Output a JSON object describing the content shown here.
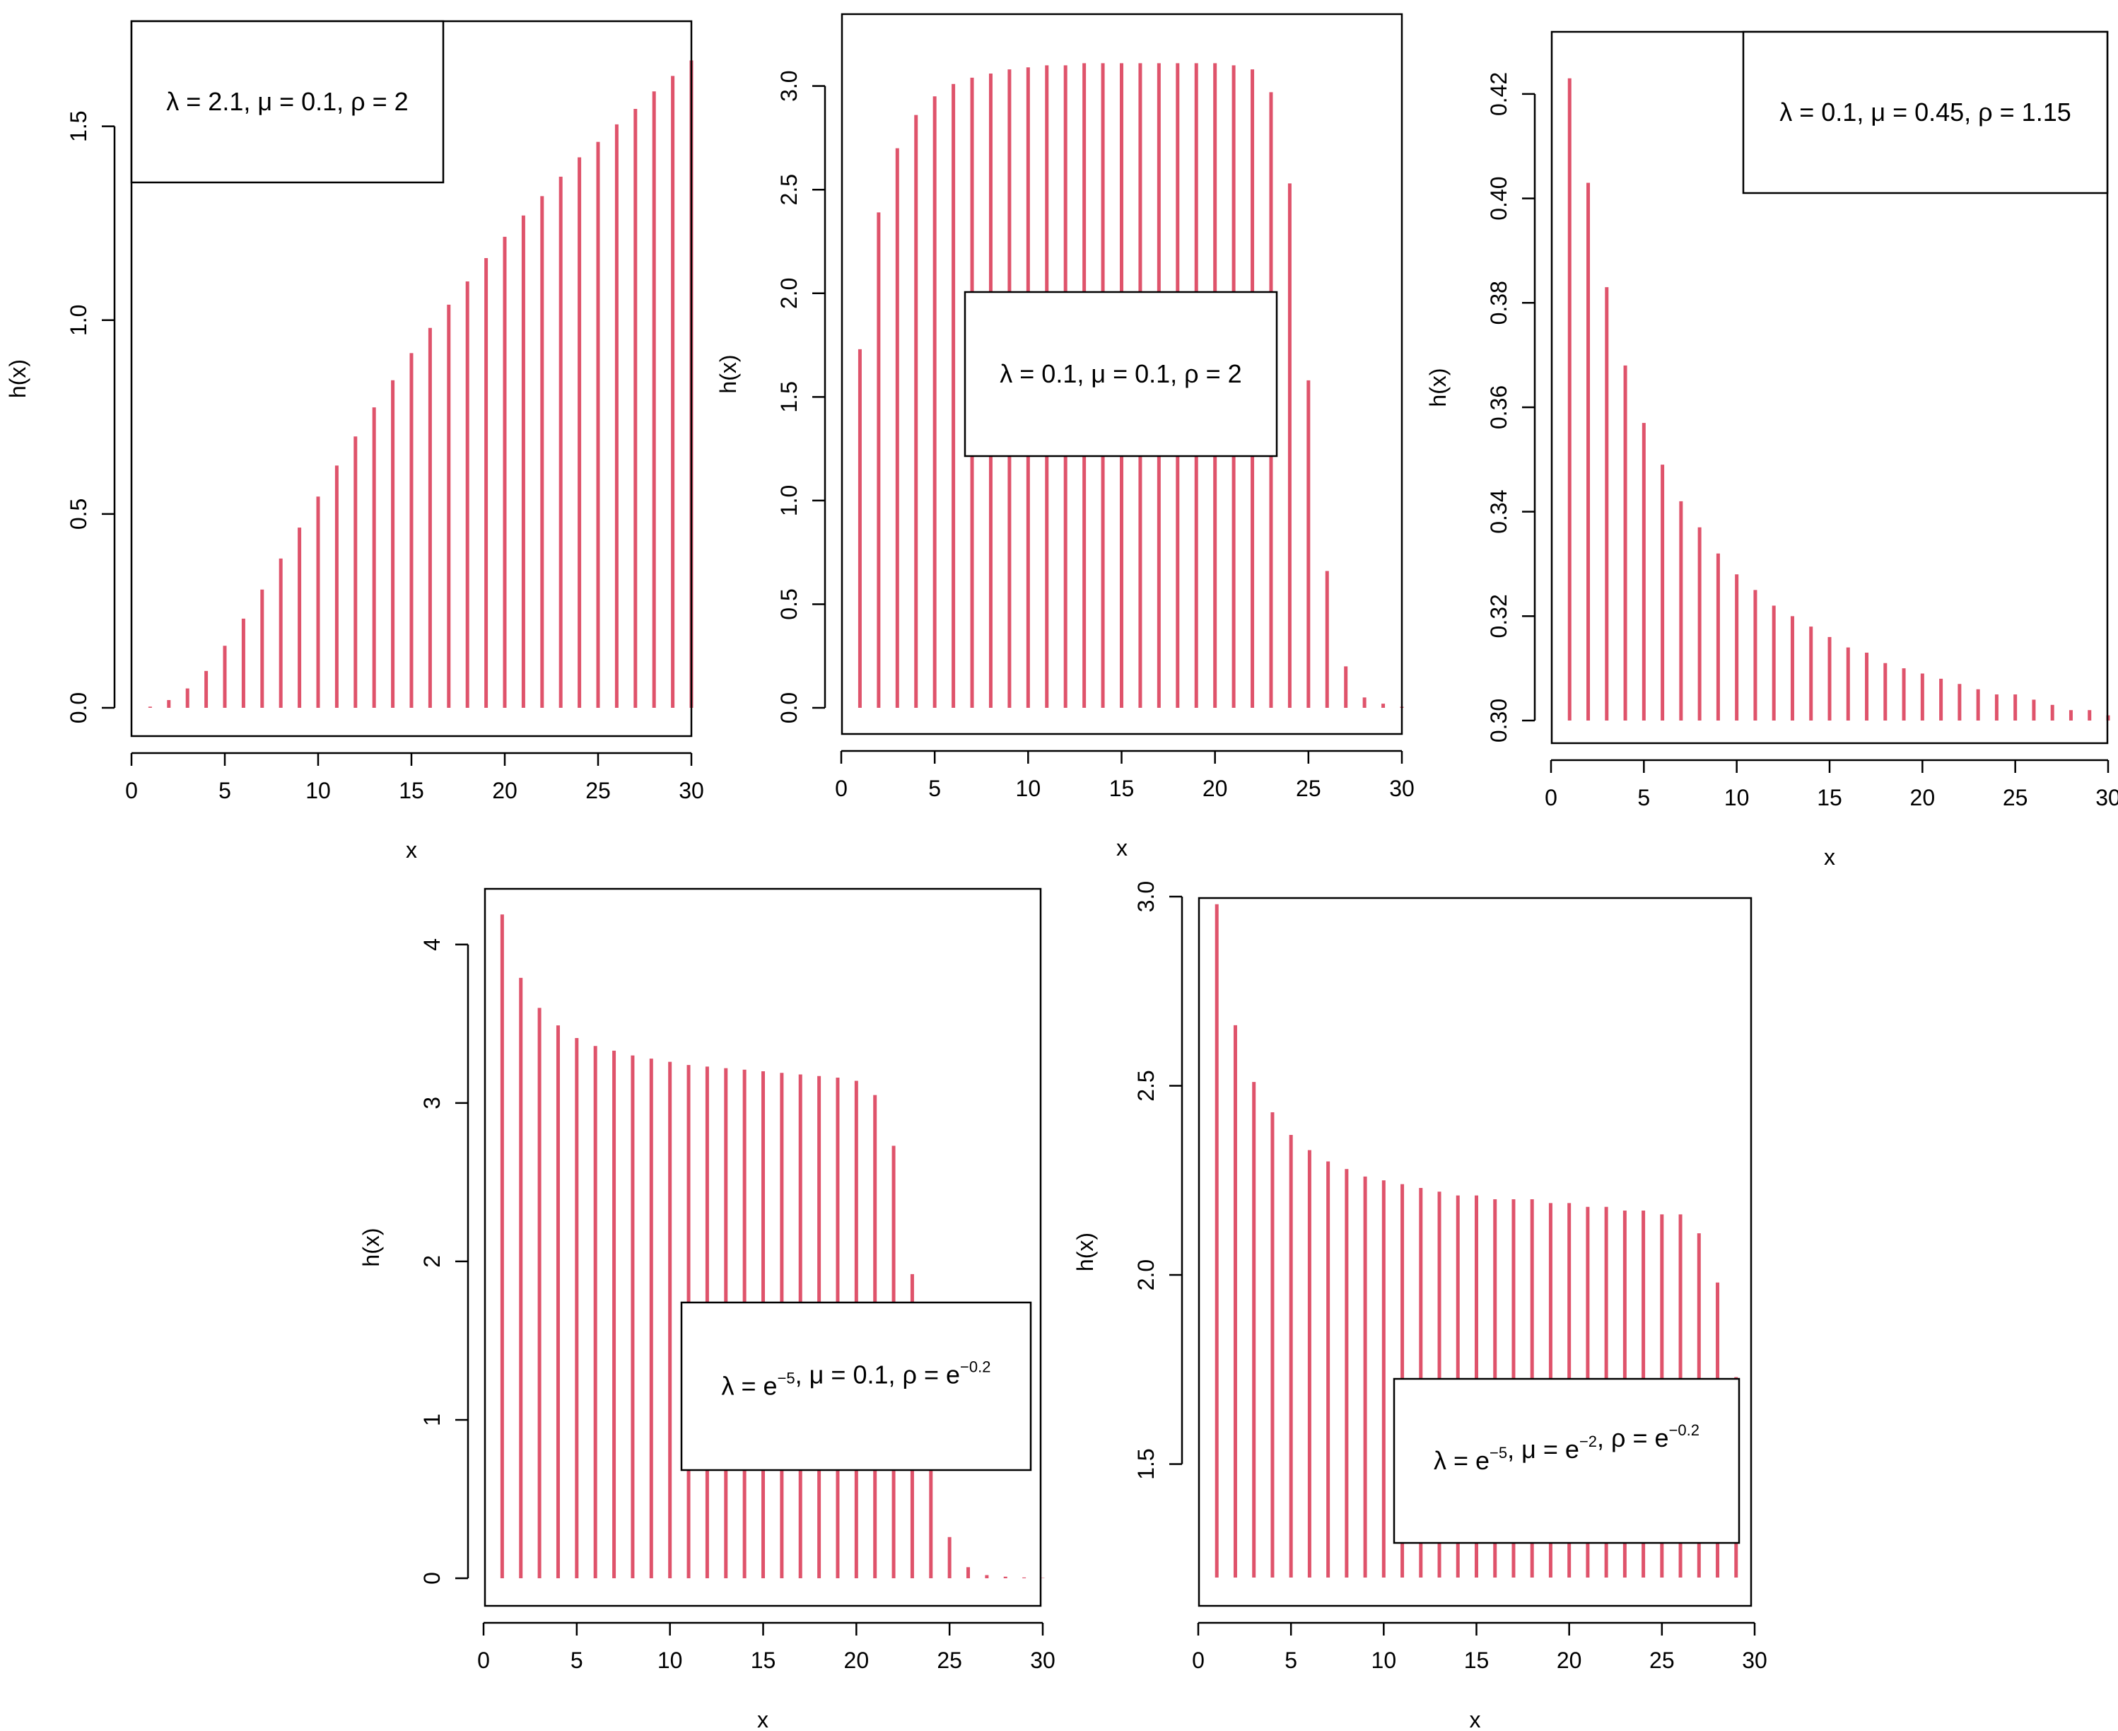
{
  "colors": {
    "spike": "#DF536B",
    "axis": "#000000",
    "background": "#FFFFFF"
  },
  "chart_data": [
    {
      "type": "bar",
      "style": "vertical-spikes",
      "xlabel": "x",
      "ylabel": "h(x)",
      "xlim": [
        0,
        30
      ],
      "ylim": [
        0,
        1.7
      ],
      "xticks": [
        "0",
        "5",
        "10",
        "15",
        "20",
        "25",
        "30"
      ],
      "yticks": [
        "0.0",
        "0.5",
        "1.0",
        "1.5"
      ],
      "grid": false,
      "legend_position": "top-left",
      "legend": {
        "parts": [
          {
            "t": "λ = 2.1, μ = 0.1, ρ = 2"
          }
        ]
      },
      "x": [
        1,
        2,
        3,
        4,
        5,
        6,
        7,
        8,
        9,
        10,
        11,
        12,
        13,
        14,
        15,
        16,
        17,
        18,
        19,
        20,
        21,
        22,
        23,
        24,
        25,
        26,
        27,
        28,
        29,
        30
      ],
      "values": [
        0.003,
        0.02,
        0.05,
        0.095,
        0.16,
        0.23,
        0.305,
        0.385,
        0.465,
        0.545,
        0.625,
        0.7,
        0.775,
        0.845,
        0.915,
        0.98,
        1.04,
        1.1,
        1.16,
        1.215,
        1.27,
        1.32,
        1.37,
        1.42,
        1.46,
        1.505,
        1.545,
        1.59,
        1.63,
        1.67
      ]
    },
    {
      "type": "bar",
      "style": "vertical-spikes",
      "xlabel": "x",
      "ylabel": "h(x)",
      "xlim": [
        0,
        30
      ],
      "ylim": [
        0,
        3.2
      ],
      "xticks": [
        "0",
        "5",
        "10",
        "15",
        "20",
        "25",
        "30"
      ],
      "yticks": [
        "0.0",
        "0.5",
        "1.0",
        "1.5",
        "2.0",
        "2.5",
        "3.0"
      ],
      "grid": false,
      "legend_position": "center-right",
      "legend": {
        "parts": [
          {
            "t": "λ = 0.1, μ = 0.1, ρ = 2"
          }
        ]
      },
      "x": [
        1,
        2,
        3,
        4,
        5,
        6,
        7,
        8,
        9,
        10,
        11,
        12,
        13,
        14,
        15,
        16,
        17,
        18,
        19,
        20,
        21,
        22,
        23,
        24,
        25,
        26,
        27,
        28,
        29,
        30
      ],
      "values": [
        1.73,
        2.39,
        2.7,
        2.86,
        2.95,
        3.01,
        3.04,
        3.06,
        3.08,
        3.09,
        3.1,
        3.1,
        3.11,
        3.11,
        3.11,
        3.11,
        3.11,
        3.11,
        3.11,
        3.11,
        3.1,
        3.08,
        2.97,
        2.53,
        1.58,
        0.66,
        0.2,
        0.05,
        0.02,
        0.005
      ]
    },
    {
      "type": "bar",
      "style": "vertical-spikes",
      "xlabel": "x",
      "ylabel": "h(x)",
      "xlim": [
        0,
        30
      ],
      "ylim": [
        0.3,
        0.425
      ],
      "xticks": [
        "0",
        "5",
        "10",
        "15",
        "20",
        "25",
        "30"
      ],
      "yticks": [
        "0.30",
        "0.32",
        "0.34",
        "0.36",
        "0.38",
        "0.40",
        "0.42"
      ],
      "grid": false,
      "legend_position": "top-right",
      "legend": {
        "parts": [
          {
            "t": "λ = 0.1, μ = 0.45, ρ = 1.15"
          }
        ]
      },
      "x": [
        1,
        2,
        3,
        4,
        5,
        6,
        7,
        8,
        9,
        10,
        11,
        12,
        13,
        14,
        15,
        16,
        17,
        18,
        19,
        20,
        21,
        22,
        23,
        24,
        25,
        26,
        27,
        28,
        29,
        30
      ],
      "values": [
        0.423,
        0.403,
        0.383,
        0.368,
        0.357,
        0.349,
        0.342,
        0.337,
        0.332,
        0.328,
        0.325,
        0.322,
        0.32,
        0.318,
        0.316,
        0.314,
        0.313,
        0.311,
        0.31,
        0.309,
        0.308,
        0.307,
        0.306,
        0.305,
        0.305,
        0.304,
        0.303,
        0.302,
        0.302,
        0.301
      ]
    },
    {
      "type": "bar",
      "style": "vertical-spikes",
      "xlabel": "x",
      "ylabel": "h(x)",
      "xlim": [
        0,
        30
      ],
      "ylim": [
        0,
        4.2
      ],
      "xticks": [
        "0",
        "5",
        "10",
        "15",
        "20",
        "25",
        "30"
      ],
      "yticks": [
        "0",
        "1",
        "2",
        "3",
        "4"
      ],
      "grid": false,
      "legend_position": "bottom-right",
      "legend": {
        "parts": [
          {
            "t": "λ = e"
          },
          {
            "t": "−5",
            "sup": true
          },
          {
            "t": ", μ = 0.1, ρ = e"
          },
          {
            "t": "−0.2",
            "sup": true
          }
        ]
      },
      "x": [
        1,
        2,
        3,
        4,
        5,
        6,
        7,
        8,
        9,
        10,
        11,
        12,
        13,
        14,
        15,
        16,
        17,
        18,
        19,
        20,
        21,
        22,
        23,
        24,
        25,
        26,
        27,
        28,
        29,
        30
      ],
      "values": [
        4.19,
        3.79,
        3.6,
        3.49,
        3.41,
        3.36,
        3.33,
        3.3,
        3.28,
        3.26,
        3.24,
        3.23,
        3.22,
        3.21,
        3.2,
        3.19,
        3.18,
        3.17,
        3.16,
        3.14,
        3.05,
        2.73,
        1.92,
        0.94,
        0.26,
        0.07,
        0.02,
        0.01,
        0.005,
        0.002
      ]
    },
    {
      "type": "bar",
      "style": "vertical-spikes",
      "xlabel": "x",
      "ylabel": "h(x)",
      "xlim": [
        0,
        30
      ],
      "ylim": [
        1.2,
        3.0
      ],
      "xticks": [
        "0",
        "5",
        "10",
        "15",
        "20",
        "25",
        "30"
      ],
      "yticks": [
        "1.5",
        "2.0",
        "2.5",
        "3.0"
      ],
      "grid": false,
      "legend_position": "bottom-right",
      "legend": {
        "parts": [
          {
            "t": "λ = e"
          },
          {
            "t": "−5",
            "sup": true
          },
          {
            "t": ", μ = e"
          },
          {
            "t": "−2",
            "sup": true
          },
          {
            "t": ", ρ = e"
          },
          {
            "t": "−0.2",
            "sup": true
          }
        ]
      },
      "x": [
        1,
        2,
        3,
        4,
        5,
        6,
        7,
        8,
        9,
        10,
        11,
        12,
        13,
        14,
        15,
        16,
        17,
        18,
        19,
        20,
        21,
        22,
        23,
        24,
        25,
        26,
        27,
        28,
        29,
        30
      ],
      "values": [
        2.98,
        2.66,
        2.51,
        2.43,
        2.37,
        2.33,
        2.3,
        2.28,
        2.26,
        2.25,
        2.24,
        2.23,
        2.22,
        2.21,
        2.21,
        2.2,
        2.2,
        2.2,
        2.19,
        2.19,
        2.18,
        2.18,
        2.17,
        2.17,
        2.16,
        2.16,
        2.11,
        1.98,
        1.73,
        1.2
      ]
    }
  ]
}
